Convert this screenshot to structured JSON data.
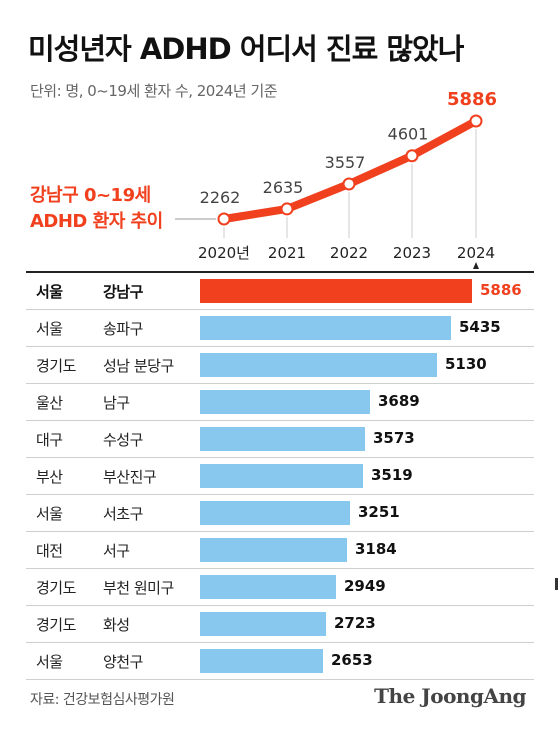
{
  "title": "미성년자 ADHD 어디서 진료 많았나",
  "subtitle": "단위: 명, 0~19세 환자 수, 2024년 기준",
  "source": "자료: 건강보험심사평가원",
  "brand": "The JoongAng",
  "colors": {
    "highlight": "#f0401e",
    "bar": "#88c8ee",
    "text": "#111111"
  },
  "chart_data": [
    {
      "type": "line",
      "series_label_lines": [
        "강남구 0~19세",
        "ADHD 환자 추이"
      ],
      "x": [
        "2020년",
        "2021",
        "2022",
        "2023",
        "2024"
      ],
      "series": [
        {
          "values": [
            2262,
            2635,
            3557,
            4601,
            5886
          ]
        }
      ],
      "value_labels": [
        "2262",
        "2635",
        "3557",
        "4601",
        "5886"
      ]
    },
    {
      "type": "bar",
      "orientation": "horizontal",
      "xlim": [
        0,
        5886
      ],
      "rows": [
        {
          "region": "서울",
          "district": "강남구",
          "value": 5886,
          "label": "5886",
          "highlight": true
        },
        {
          "region": "서울",
          "district": "송파구",
          "value": 5435,
          "label": "5435"
        },
        {
          "region": "경기도",
          "district": "성남 분당구",
          "value": 5130,
          "label": "5130"
        },
        {
          "region": "울산",
          "district": "남구",
          "value": 3689,
          "label": "3689"
        },
        {
          "region": "대구",
          "district": "수성구",
          "value": 3573,
          "label": "3573"
        },
        {
          "region": "부산",
          "district": "부산진구",
          "value": 3519,
          "label": "3519"
        },
        {
          "region": "서울",
          "district": "서초구",
          "value": 3251,
          "label": "3251"
        },
        {
          "region": "대전",
          "district": "서구",
          "value": 3184,
          "label": "3184"
        },
        {
          "region": "경기도",
          "district": "부천 원미구",
          "value": 2949,
          "label": "2949"
        },
        {
          "region": "경기도",
          "district": "화성",
          "value": 2723,
          "label": "2723"
        },
        {
          "region": "서울",
          "district": "양천구",
          "value": 2653,
          "label": "2653"
        }
      ]
    }
  ]
}
